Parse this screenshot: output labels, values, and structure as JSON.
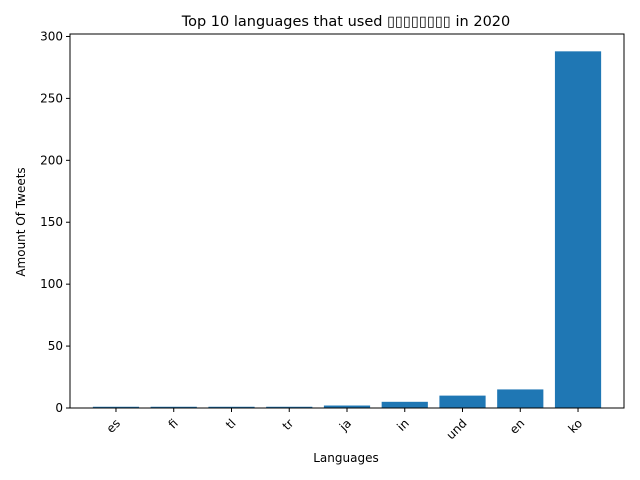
{
  "chart_data": {
    "type": "bar",
    "title": "Top 10 languages that used ▯▯▯▯▯▯▯▯ in 2020",
    "xlabel": "Languages",
    "ylabel": "Amount Of Tweets",
    "categories": [
      "es",
      "fi",
      "tl",
      "tr",
      "ja",
      "in",
      "und",
      "en",
      "ko"
    ],
    "values": [
      1,
      1,
      1,
      1,
      2,
      5,
      10,
      15,
      288
    ],
    "ylim": [
      0,
      302
    ],
    "yticks": [
      0,
      50,
      100,
      150,
      200,
      250,
      300
    ],
    "grid": false,
    "bar_color": "#1f77b4",
    "x_tick_rotation": 45
  }
}
